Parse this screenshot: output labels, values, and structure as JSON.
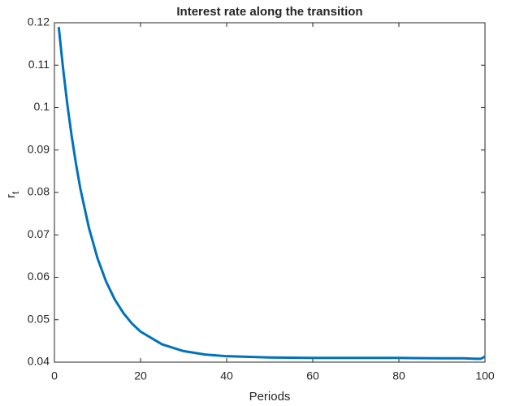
{
  "chart_data": {
    "type": "line",
    "title": "Interest rate along the transition",
    "xlabel": "Periods",
    "ylabel": {
      "base": "r",
      "subscript": "t"
    },
    "x": [
      1,
      2,
      3,
      4,
      5,
      6,
      8,
      10,
      12,
      14,
      16,
      18,
      20,
      25,
      30,
      35,
      40,
      50,
      60,
      70,
      80,
      90,
      95,
      98,
      99,
      100
    ],
    "series": [
      {
        "name": "r",
        "color": "#0072bd",
        "values": [
          0.119,
          0.1093,
          0.1007,
          0.0933,
          0.0868,
          0.081,
          0.0717,
          0.0645,
          0.059,
          0.0548,
          0.0516,
          0.0491,
          0.0472,
          0.0442,
          0.0426,
          0.0418,
          0.0414,
          0.0411,
          0.041,
          0.041,
          0.041,
          0.0409,
          0.0409,
          0.0408,
          0.0408,
          0.0413
        ]
      }
    ],
    "xlim": [
      0,
      100
    ],
    "xticks": [
      0,
      20,
      40,
      60,
      80,
      100
    ],
    "ylim": [
      0.04,
      0.12
    ],
    "yticks": [
      0.04,
      0.05,
      0.06,
      0.07,
      0.08,
      0.09,
      0.1,
      0.11,
      0.12
    ],
    "grid": false
  }
}
